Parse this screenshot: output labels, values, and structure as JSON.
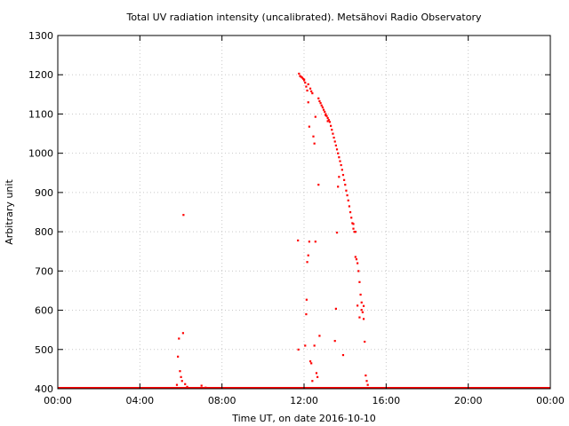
{
  "chart_data": {
    "type": "scatter",
    "title": "Total UV radiation intensity (uncalibrated). Metsähovi Radio Observatory",
    "xlabel": "Time UT, on date 2016-10-10",
    "ylabel": "Arbitrary unit",
    "xlim": [
      0,
      24
    ],
    "ylim": [
      400,
      1300
    ],
    "x_ticks": [
      {
        "value": 0,
        "label": "00:00"
      },
      {
        "value": 4,
        "label": "04:00"
      },
      {
        "value": 8,
        "label": "08:00"
      },
      {
        "value": 12,
        "label": "12:00"
      },
      {
        "value": 16,
        "label": "16:00"
      },
      {
        "value": 20,
        "label": "20:00"
      },
      {
        "value": 24,
        "label": "00:00"
      }
    ],
    "y_ticks": [
      {
        "value": 400,
        "label": "400"
      },
      {
        "value": 500,
        "label": "500"
      },
      {
        "value": 600,
        "label": "600"
      },
      {
        "value": 700,
        "label": "700"
      },
      {
        "value": 800,
        "label": "800"
      },
      {
        "value": 900,
        "label": "900"
      },
      {
        "value": 1000,
        "label": "1000"
      },
      {
        "value": 1100,
        "label": "1100"
      },
      {
        "value": 1200,
        "label": "1200"
      },
      {
        "value": 1300,
        "label": "1300"
      }
    ],
    "grid": true,
    "point_color": "#ff0000",
    "baseline": {
      "y": 400,
      "x_start": 0,
      "x_end": 24
    },
    "series": [
      {
        "points": [
          [
            5.8,
            410
          ],
          [
            5.85,
            482
          ],
          [
            5.9,
            528
          ],
          [
            5.95,
            445
          ],
          [
            6.0,
            430
          ],
          [
            6.05,
            420
          ],
          [
            6.1,
            542
          ],
          [
            6.12,
            843
          ],
          [
            6.2,
            412
          ],
          [
            6.3,
            405
          ],
          [
            7.0,
            408
          ],
          [
            7.2,
            403
          ],
          [
            11.75,
            1203
          ],
          [
            11.8,
            1197
          ],
          [
            11.85,
            1195
          ],
          [
            11.9,
            1193
          ],
          [
            11.95,
            1190
          ],
          [
            12.0,
            1186
          ],
          [
            12.05,
            1180
          ],
          [
            12.1,
            1170
          ],
          [
            12.15,
            1160
          ],
          [
            12.2,
            1130
          ],
          [
            12.25,
            1068
          ],
          [
            12.3,
            1165
          ],
          [
            12.35,
            1158
          ],
          [
            12.4,
            1153
          ],
          [
            12.45,
            1043
          ],
          [
            12.5,
            1025
          ],
          [
            12.55,
            1093
          ],
          [
            12.7,
            1140
          ],
          [
            12.75,
            1133
          ],
          [
            12.8,
            1128
          ],
          [
            12.85,
            1122
          ],
          [
            12.9,
            1117
          ],
          [
            12.95,
            1111
          ],
          [
            13.0,
            1106
          ],
          [
            13.05,
            1100
          ],
          [
            13.1,
            1095
          ],
          [
            13.15,
            1090
          ],
          [
            13.2,
            1085
          ],
          [
            13.25,
            1080
          ],
          [
            13.3,
            1070
          ],
          [
            13.35,
            1060
          ],
          [
            13.4,
            1050
          ],
          [
            13.45,
            1040
          ],
          [
            13.5,
            1030
          ],
          [
            13.55,
            1020
          ],
          [
            13.6,
            1010
          ],
          [
            13.65,
            1000
          ],
          [
            13.7,
            990
          ],
          [
            13.75,
            980
          ],
          [
            13.8,
            970
          ],
          [
            13.85,
            958
          ],
          [
            13.9,
            945
          ],
          [
            13.95,
            932
          ],
          [
            14.0,
            920
          ],
          [
            14.05,
            905
          ],
          [
            14.1,
            893
          ],
          [
            14.15,
            880
          ],
          [
            14.2,
            865
          ],
          [
            14.25,
            850
          ],
          [
            14.3,
            836
          ],
          [
            14.35,
            822
          ],
          [
            14.4,
            808
          ],
          [
            14.45,
            800
          ],
          [
            14.5,
            736
          ],
          [
            14.55,
            730
          ],
          [
            14.6,
            720
          ],
          [
            14.65,
            700
          ],
          [
            14.7,
            672
          ],
          [
            14.75,
            640
          ],
          [
            14.8,
            620
          ],
          [
            14.85,
            595
          ],
          [
            14.9,
            578
          ],
          [
            14.95,
            520
          ],
          [
            15.0,
            434
          ],
          [
            15.05,
            420
          ],
          [
            15.1,
            410
          ],
          [
            11.7,
            778
          ],
          [
            11.72,
            500
          ],
          [
            12.05,
            510
          ],
          [
            12.1,
            590
          ],
          [
            12.12,
            627
          ],
          [
            12.15,
            723
          ],
          [
            12.2,
            740
          ],
          [
            12.25,
            775
          ],
          [
            12.3,
            470
          ],
          [
            12.35,
            465
          ],
          [
            12.4,
            420
          ],
          [
            12.5,
            510
          ],
          [
            12.55,
            775
          ],
          [
            12.6,
            440
          ],
          [
            12.65,
            430
          ],
          [
            12.7,
            920
          ],
          [
            12.75,
            535
          ],
          [
            13.5,
            522
          ],
          [
            13.55,
            604
          ],
          [
            13.6,
            798
          ],
          [
            13.65,
            915
          ],
          [
            13.7,
            940
          ],
          [
            13.9,
            486
          ],
          [
            14.6,
            612
          ],
          [
            14.7,
            582
          ],
          [
            14.8,
            601
          ],
          [
            14.9,
            611
          ],
          [
            12.0,
            1188
          ],
          [
            12.2,
            1176
          ],
          [
            13.05,
            1097
          ],
          [
            13.15,
            1082
          ],
          [
            14.4,
            820
          ],
          [
            14.5,
            800
          ]
        ]
      }
    ]
  }
}
